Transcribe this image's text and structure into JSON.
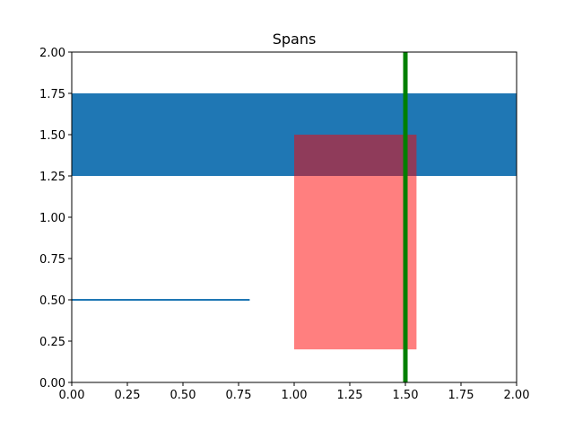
{
  "chart_data": {
    "type": "line",
    "title": "Spans",
    "xlabel": "",
    "ylabel": "",
    "xlim": [
      0,
      2
    ],
    "ylim": [
      0,
      2
    ],
    "grid": false,
    "x_ticks": [
      "0.00",
      "0.25",
      "0.50",
      "0.75",
      "1.00",
      "1.25",
      "1.50",
      "1.75",
      "2.00"
    ],
    "y_ticks": [
      "0.00",
      "0.25",
      "0.50",
      "0.75",
      "1.00",
      "1.25",
      "1.50",
      "1.75",
      "2.00"
    ],
    "horizontal_span": {
      "ymin": 1.25,
      "ymax": 1.75,
      "xmin": 0,
      "xmax": 2,
      "color": "#1f77b4",
      "opacity": 1
    },
    "vertical_span": {
      "xmin": 1.0,
      "xmax": 1.55,
      "ymin": 0.2,
      "ymax": 1.5,
      "color": "#ff0000",
      "opacity": 0.5
    },
    "vertical_line": {
      "x": 1.5,
      "ymin": 0,
      "ymax": 2,
      "color": "#008000"
    },
    "horizontal_line": {
      "y": 0.5,
      "xmin": 0,
      "xmax": 0.8,
      "color": "#1f77b4"
    }
  }
}
